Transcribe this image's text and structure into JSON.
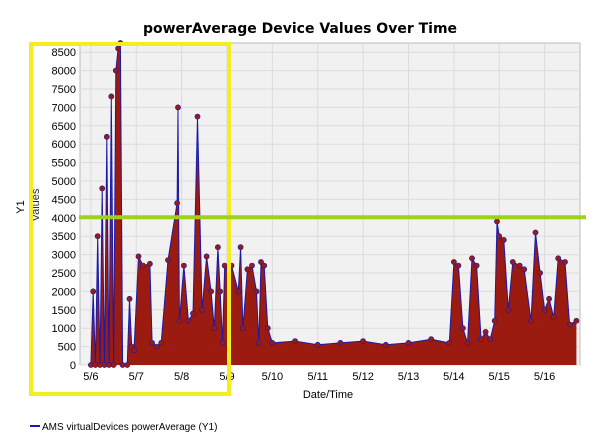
{
  "chart_data": {
    "type": "area",
    "title": "powerAverage Device Values Over Time",
    "xlabel": "Date/Time",
    "ylabel": "Y1",
    "ylabel_overlap": "Values",
    "ylim": [
      0,
      8750
    ],
    "yticks": [
      0,
      500,
      1000,
      1500,
      2000,
      2500,
      3000,
      3500,
      4000,
      4500,
      5000,
      5500,
      6000,
      6500,
      7000,
      7500,
      8000,
      8500
    ],
    "xlim": [
      5.76,
      16.78
    ],
    "x_tick_labels": [
      "5/6",
      "5/7",
      "5/8",
      "5/9",
      "5/10",
      "5/11",
      "5/12",
      "5/13",
      "5/14",
      "5/15",
      "5/16"
    ],
    "grid": true,
    "legend_position": "bottom-left",
    "series": [
      {
        "name": "AMS virtualDevices powerAverage (Y1)",
        "line_color": "#1a1aa8",
        "marker_color": "#9b1b10",
        "points": [
          [
            6.0,
            0
          ],
          [
            6.05,
            2000
          ],
          [
            6.1,
            0
          ],
          [
            6.15,
            3500
          ],
          [
            6.2,
            0
          ],
          [
            6.25,
            4800
          ],
          [
            6.3,
            0
          ],
          [
            6.35,
            6200
          ],
          [
            6.4,
            0
          ],
          [
            6.45,
            7300
          ],
          [
            6.5,
            0
          ],
          [
            6.55,
            8000
          ],
          [
            6.6,
            8600
          ],
          [
            6.65,
            8750
          ],
          [
            6.7,
            0
          ],
          [
            6.8,
            0
          ],
          [
            6.85,
            1800
          ],
          [
            6.9,
            500
          ],
          [
            6.95,
            400
          ],
          [
            7.05,
            2950
          ],
          [
            7.15,
            2700
          ],
          [
            7.3,
            2750
          ],
          [
            7.35,
            600
          ],
          [
            7.45,
            500
          ],
          [
            7.55,
            600
          ],
          [
            7.7,
            2850
          ],
          [
            7.9,
            4400
          ],
          [
            7.92,
            7000
          ],
          [
            7.95,
            1200
          ],
          [
            8.05,
            2700
          ],
          [
            8.15,
            1200
          ],
          [
            8.25,
            1400
          ],
          [
            8.35,
            6750
          ],
          [
            8.45,
            1500
          ],
          [
            8.55,
            2950
          ],
          [
            8.65,
            2000
          ],
          [
            8.72,
            1000
          ],
          [
            8.8,
            3200
          ],
          [
            8.85,
            2000
          ],
          [
            8.9,
            600
          ],
          [
            8.95,
            2700
          ],
          [
            9.05,
            2600
          ],
          [
            9.1,
            2700
          ],
          [
            9.25,
            2000
          ],
          [
            9.3,
            3200
          ],
          [
            9.35,
            1000
          ],
          [
            9.45,
            2600
          ],
          [
            9.55,
            2700
          ],
          [
            9.65,
            2000
          ],
          [
            9.7,
            600
          ],
          [
            9.75,
            2800
          ],
          [
            9.82,
            2700
          ],
          [
            9.9,
            1000
          ],
          [
            10.0,
            600
          ],
          [
            10.5,
            650
          ],
          [
            11.0,
            550
          ],
          [
            11.5,
            600
          ],
          [
            12.0,
            650
          ],
          [
            12.5,
            550
          ],
          [
            13.0,
            600
          ],
          [
            13.5,
            700
          ],
          [
            13.9,
            600
          ],
          [
            14.0,
            2800
          ],
          [
            14.1,
            2700
          ],
          [
            14.2,
            1000
          ],
          [
            14.3,
            600
          ],
          [
            14.4,
            2900
          ],
          [
            14.5,
            2700
          ],
          [
            14.6,
            700
          ],
          [
            14.7,
            900
          ],
          [
            14.8,
            700
          ],
          [
            14.9,
            1200
          ],
          [
            14.95,
            3900
          ],
          [
            15.0,
            3500
          ],
          [
            15.1,
            3400
          ],
          [
            15.2,
            1500
          ],
          [
            15.3,
            2800
          ],
          [
            15.45,
            2700
          ],
          [
            15.55,
            2600
          ],
          [
            15.7,
            1200
          ],
          [
            15.8,
            3600
          ],
          [
            15.9,
            2500
          ],
          [
            16.0,
            1500
          ],
          [
            16.1,
            1800
          ],
          [
            16.2,
            1300
          ],
          [
            16.3,
            2900
          ],
          [
            16.45,
            2800
          ],
          [
            16.55,
            1100
          ],
          [
            16.7,
            1200
          ]
        ]
      }
    ]
  },
  "overlays": {
    "highlight_box_color": "#f4ee1e",
    "threshold_line_color": "#9ed11a",
    "threshold_value": 4000
  }
}
